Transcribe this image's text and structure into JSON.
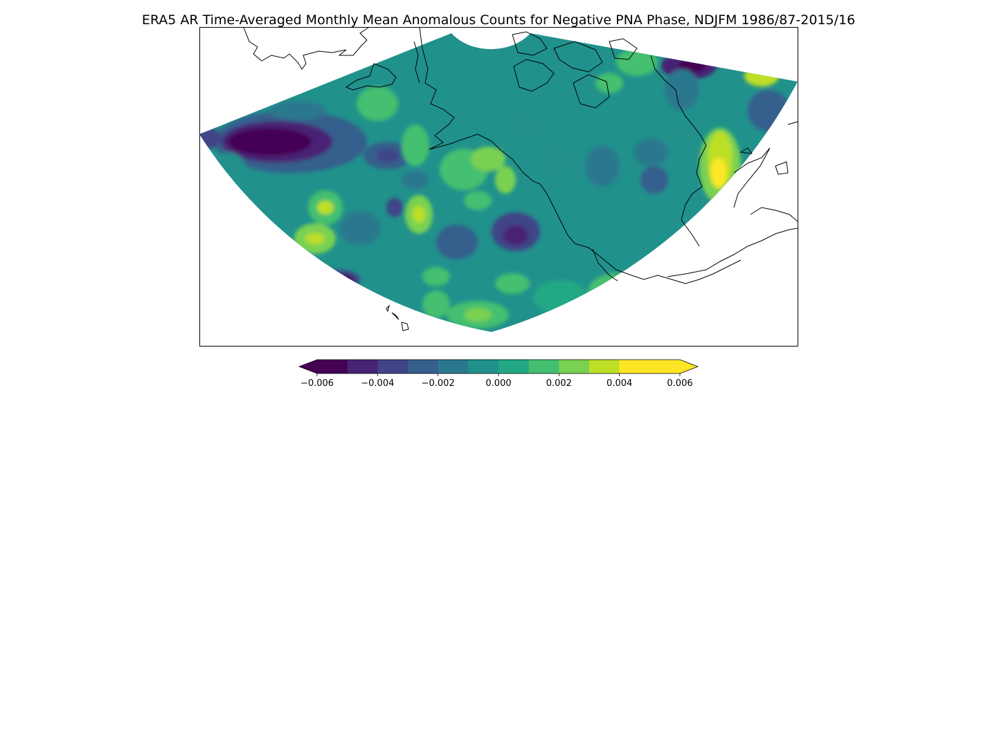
{
  "title": "ERA5 AR Time-Averaged Monthly Mean Anomalous Counts for Negative PNA Phase, NDJFM 1986/87-2015/16",
  "colorbar": {
    "ticks": [
      "−0.006",
      "−0.004",
      "−0.002",
      "0.000",
      "0.002",
      "0.004",
      "0.006"
    ],
    "tick_values": [
      -0.006,
      -0.004,
      -0.002,
      0.0,
      0.002,
      0.004,
      0.006
    ],
    "levels": [
      -0.006,
      -0.005,
      -0.004,
      -0.003,
      -0.002,
      -0.001,
      0.0,
      0.001,
      0.002,
      0.003,
      0.004,
      0.005,
      0.006
    ],
    "extend": "both",
    "colors": [
      "#440154",
      "#482475",
      "#414487",
      "#355f8d",
      "#2a788e",
      "#21918c",
      "#22a884",
      "#44bf70",
      "#7ad151",
      "#bddf26",
      "#fde725"
    ],
    "under_color": "#440154",
    "over_color": "#fde725"
  },
  "map": {
    "projection": "Lambert conformal sector",
    "region": "North Pacific / North America",
    "background": "#21918c",
    "coastline_color": "#000000"
  }
}
